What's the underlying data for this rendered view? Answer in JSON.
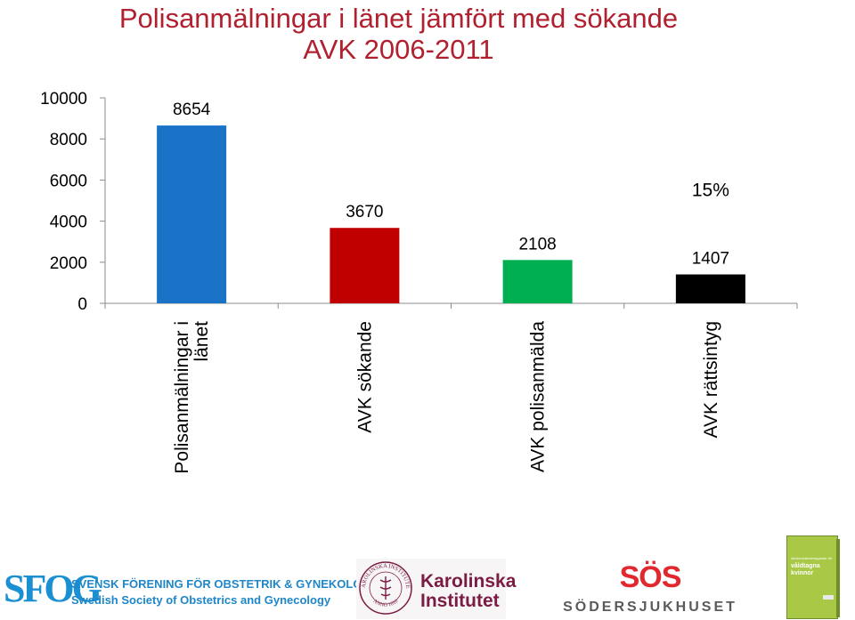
{
  "title_lines": [
    "Polisanmälningar i länet jämfört med sökande",
    "AVK 2006-2011"
  ],
  "chart_data": {
    "type": "bar",
    "categories": [
      [
        "Polisanmälningar i",
        "länet"
      ],
      [
        "AVK sökande"
      ],
      [
        "AVK polisanmälda"
      ],
      [
        "AVK rättsintyg"
      ]
    ],
    "values": [
      8654,
      3670,
      2108,
      1407
    ],
    "data_labels": [
      "8654",
      "3670",
      "2108",
      "1407"
    ],
    "bar_colors": [
      "#1a73c7",
      "#c00000",
      "#00b050",
      "#000000"
    ],
    "ylim": [
      0,
      10000
    ],
    "yticks": [
      0,
      2000,
      4000,
      6000,
      8000,
      10000
    ],
    "ytick_labels": [
      "0",
      "2000",
      "4000",
      "6000",
      "8000",
      "10000"
    ],
    "grid": false,
    "legend": "none",
    "annotations": [
      {
        "text": "15%",
        "category": "AVK rättsintyg"
      }
    ]
  },
  "logos": {
    "sfog": {
      "letters": "SFOG",
      "line1": "SVENSK FÖRENING FÖR OBSTETRIK & GYNEKOLOGI",
      "line2": "Swedish Society of Obstetrics and Gynecology"
    },
    "karolinska": {
      "seal_text": "KAROLINSKA INSTITUTET",
      "seal_year": "ANNO 1810",
      "name_line1": "Karolinska",
      "name_line2": "Institutet"
    },
    "sos": {
      "mark": "SÖS",
      "name": "SÖDERSJUKHUSET"
    },
    "booklet": {
      "small_text": "Akutomhändertagande för",
      "title": "våldtagna kvinnor"
    }
  }
}
